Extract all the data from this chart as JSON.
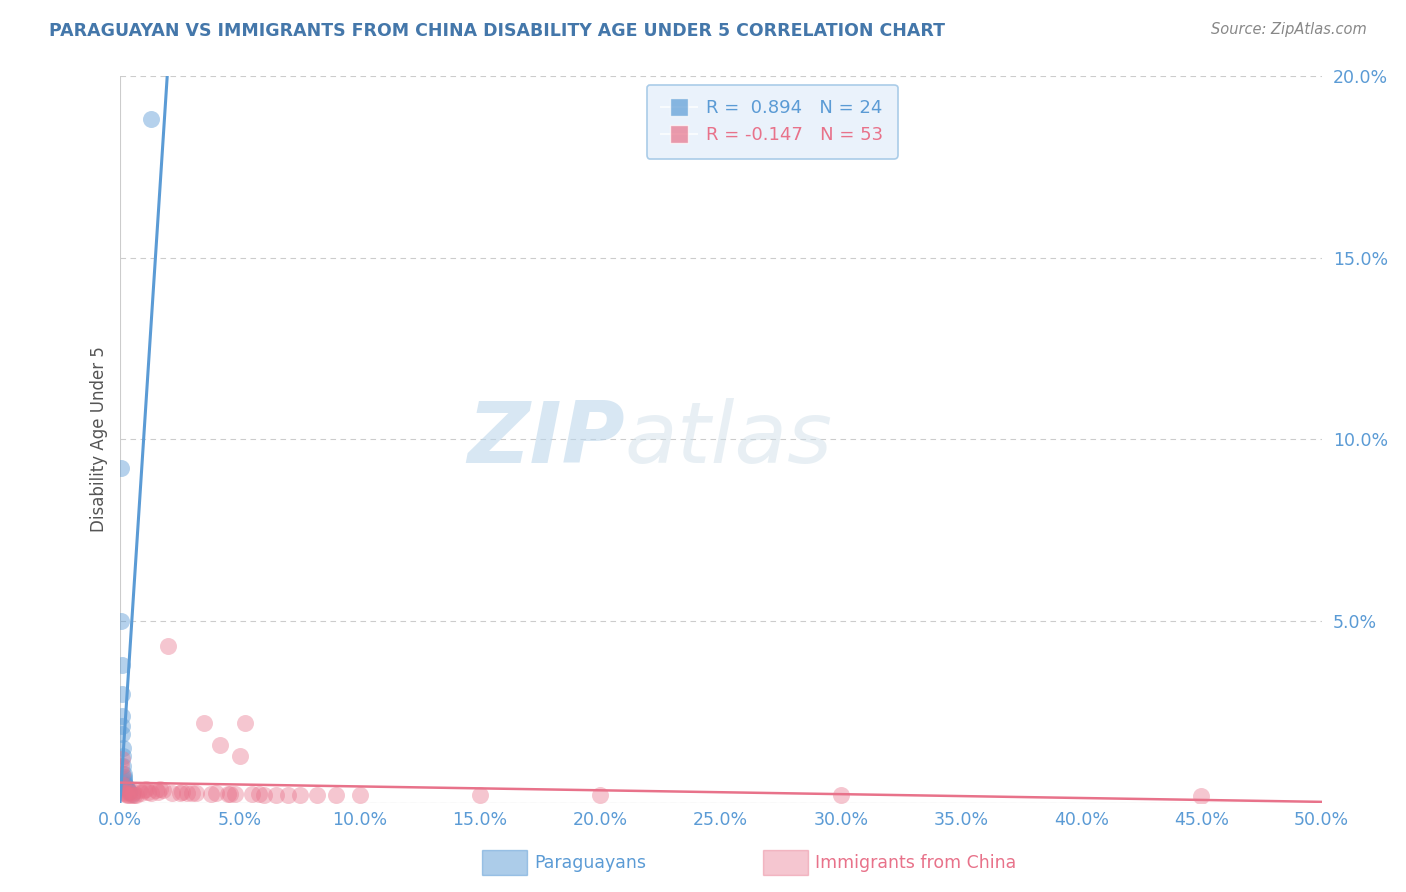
{
  "title": "PARAGUAYAN VS IMMIGRANTS FROM CHINA DISABILITY AGE UNDER 5 CORRELATION CHART",
  "source": "Source: ZipAtlas.com",
  "ylabel": "Disability Age Under 5",
  "xlim": [
    0,
    0.5
  ],
  "ylim": [
    0,
    0.2
  ],
  "xticks": [
    0.0,
    0.05,
    0.1,
    0.15,
    0.2,
    0.25,
    0.3,
    0.35,
    0.4,
    0.45,
    0.5
  ],
  "yticks": [
    0.0,
    0.05,
    0.1,
    0.15,
    0.2
  ],
  "blue_color": "#5b9bd5",
  "pink_color": "#e8728a",
  "blue_scatter": [
    [
      0.0005,
      0.092
    ],
    [
      0.0008,
      0.05
    ],
    [
      0.001,
      0.038
    ],
    [
      0.001,
      0.03
    ],
    [
      0.001,
      0.024
    ],
    [
      0.0012,
      0.021
    ],
    [
      0.0012,
      0.019
    ],
    [
      0.0013,
      0.015
    ],
    [
      0.0015,
      0.013
    ],
    [
      0.0015,
      0.01
    ],
    [
      0.0017,
      0.008
    ],
    [
      0.0018,
      0.007
    ],
    [
      0.0018,
      0.0065
    ],
    [
      0.002,
      0.006
    ],
    [
      0.002,
      0.0055
    ],
    [
      0.0022,
      0.005
    ],
    [
      0.0025,
      0.0045
    ],
    [
      0.0028,
      0.004
    ],
    [
      0.003,
      0.0038
    ],
    [
      0.0035,
      0.0035
    ],
    [
      0.0038,
      0.0033
    ],
    [
      0.004,
      0.003
    ],
    [
      0.005,
      0.0025
    ],
    [
      0.013,
      0.188
    ]
  ],
  "pink_scatter": [
    [
      0.0008,
      0.01
    ],
    [
      0.001,
      0.012
    ],
    [
      0.0012,
      0.008
    ],
    [
      0.0015,
      0.005
    ],
    [
      0.0018,
      0.003
    ],
    [
      0.002,
      0.0028
    ],
    [
      0.0025,
      0.0025
    ],
    [
      0.003,
      0.0022
    ],
    [
      0.0035,
      0.003
    ],
    [
      0.004,
      0.0022
    ],
    [
      0.005,
      0.0022
    ],
    [
      0.0055,
      0.003
    ],
    [
      0.006,
      0.0022
    ],
    [
      0.007,
      0.0022
    ],
    [
      0.008,
      0.0035
    ],
    [
      0.009,
      0.0028
    ],
    [
      0.01,
      0.0035
    ],
    [
      0.011,
      0.0038
    ],
    [
      0.012,
      0.003
    ],
    [
      0.013,
      0.0028
    ],
    [
      0.015,
      0.0035
    ],
    [
      0.016,
      0.003
    ],
    [
      0.017,
      0.0038
    ],
    [
      0.018,
      0.0035
    ],
    [
      0.02,
      0.043
    ],
    [
      0.022,
      0.0028
    ],
    [
      0.025,
      0.0028
    ],
    [
      0.026,
      0.003
    ],
    [
      0.028,
      0.0028
    ],
    [
      0.03,
      0.0028
    ],
    [
      0.032,
      0.0028
    ],
    [
      0.035,
      0.022
    ],
    [
      0.038,
      0.0025
    ],
    [
      0.04,
      0.0028
    ],
    [
      0.042,
      0.016
    ],
    [
      0.045,
      0.0025
    ],
    [
      0.046,
      0.0025
    ],
    [
      0.048,
      0.0025
    ],
    [
      0.05,
      0.013
    ],
    [
      0.052,
      0.022
    ],
    [
      0.055,
      0.0025
    ],
    [
      0.058,
      0.0025
    ],
    [
      0.06,
      0.0022
    ],
    [
      0.065,
      0.0022
    ],
    [
      0.07,
      0.0022
    ],
    [
      0.075,
      0.0022
    ],
    [
      0.082,
      0.0022
    ],
    [
      0.09,
      0.0022
    ],
    [
      0.1,
      0.0022
    ],
    [
      0.15,
      0.0022
    ],
    [
      0.2,
      0.0022
    ],
    [
      0.3,
      0.0022
    ],
    [
      0.45,
      0.0018
    ]
  ],
  "blue_R": 0.894,
  "blue_N": 24,
  "pink_R": -0.147,
  "pink_N": 53,
  "watermark_zip": "ZIP",
  "watermark_atlas": "atlas",
  "bg_color": "#ffffff",
  "grid_color": "#cccccc",
  "title_color": "#4477aa",
  "axis_tick_color": "#5b9bd5",
  "legend_face_color": "#eaf2fb",
  "legend_edge_color": "#aacce8"
}
